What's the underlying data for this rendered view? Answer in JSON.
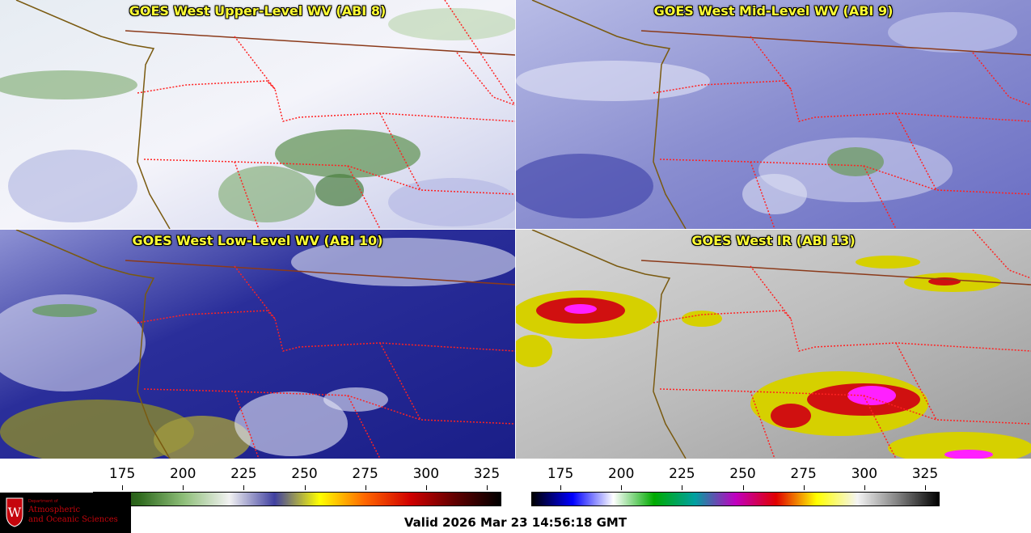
{
  "panels": [
    {
      "title": "GOES West Upper-Level WV (ABI 8)",
      "palette": "wv-upper"
    },
    {
      "title": "GOES West Mid-Level WV (ABI 9)",
      "palette": "wv-mid"
    },
    {
      "title": "GOES West Low-Level WV (ABI 10)",
      "palette": "wv-low"
    },
    {
      "title": "GOES West IR (ABI 13)",
      "palette": "ir"
    }
  ],
  "colorbars": {
    "wv": {
      "ticks": [
        "175",
        "200",
        "225",
        "250",
        "275",
        "300",
        "325"
      ],
      "colors": [
        "#0f2a05",
        "#2f6a1e",
        "#8fbf7a",
        "#f2f2f2",
        "#4040a0",
        "#ffff00",
        "#ff6600",
        "#d00000",
        "#600000",
        "#000000"
      ]
    },
    "ir": {
      "ticks": [
        "175",
        "200",
        "225",
        "250",
        "275",
        "300",
        "325"
      ],
      "colors": [
        "#000000",
        "#0000ff",
        "#ffffff",
        "#00aa00",
        "#00a0a0",
        "#c000c0",
        "#e00000",
        "#ffff00",
        "#f4f4f4",
        "#808080",
        "#000000"
      ]
    }
  },
  "logo": {
    "department": "Department of",
    "line1": "Atmospheric",
    "line2": "and Oceanic Sciences",
    "crest_letter": "W"
  },
  "valid_time": "Valid 2026 Mar 23 14:56:18 GMT"
}
